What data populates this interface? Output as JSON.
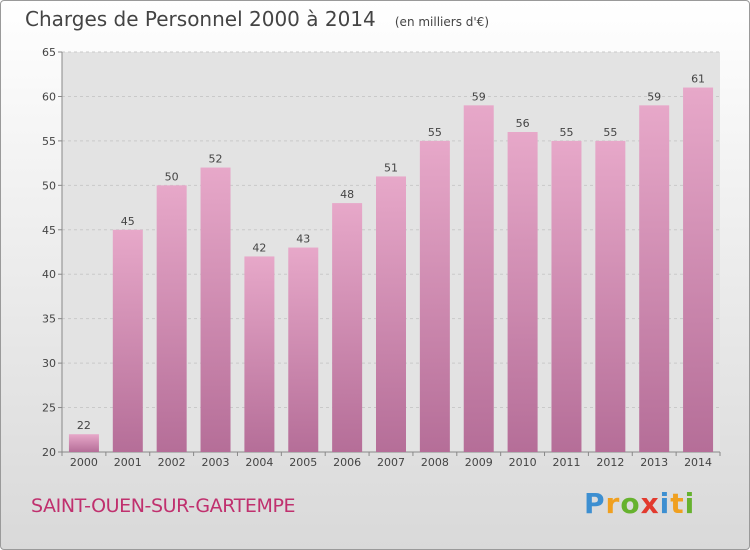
{
  "header": {
    "title": "Charges de Personnel 2000 à 2014",
    "subtitle": "(en milliers d'€)"
  },
  "footer": {
    "place": "SAINT-OUEN-SUR-GARTEMPE",
    "brand": "Proxiti"
  },
  "colors": {
    "bar_top": "#e7a8c9",
    "bar_bottom": "#b56e98",
    "grid": "#c9c9c9",
    "axis": "#888888",
    "place_text": "#c0306e",
    "brand_letters": [
      "#3d8fd1",
      "#f0a020",
      "#66b22e",
      "#e23a2e",
      "#3d8fd1",
      "#f0a020",
      "#66b22e"
    ]
  },
  "chart_data": {
    "type": "bar",
    "title": "Charges de Personnel 2000 à 2014",
    "subtitle": "(en milliers d'€)",
    "xlabel": "",
    "ylabel": "",
    "categories": [
      "2000",
      "2001",
      "2002",
      "2003",
      "2004",
      "2005",
      "2006",
      "2007",
      "2008",
      "2009",
      "2010",
      "2011",
      "2012",
      "2013",
      "2014"
    ],
    "values": [
      22,
      45,
      50,
      52,
      42,
      43,
      48,
      51,
      55,
      59,
      56,
      55,
      55,
      59,
      61
    ],
    "ylim": [
      20,
      65
    ],
    "yticks": [
      20,
      25,
      30,
      35,
      40,
      45,
      50,
      55,
      60,
      65
    ],
    "grid": true,
    "data_labels": true
  }
}
